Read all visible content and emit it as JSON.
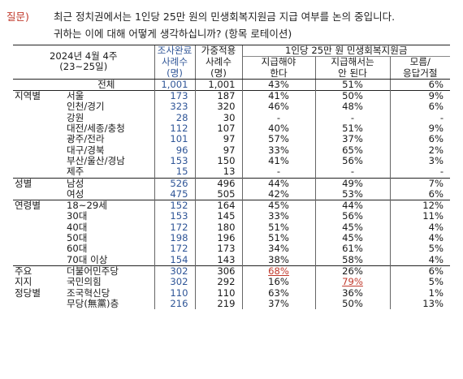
{
  "question": {
    "label": "질문)",
    "line1": "최근 정치권에서는 1인당 25만 원의 민생회복지원금 지급 여부를 논의 중입니다.",
    "line2": "귀하는 이에 대해 어떻게 생각하십니까? (항목 로테이션)"
  },
  "header": {
    "date": "2024년 4월 4주",
    "range": "(23~25일)",
    "col_completed_1": "조사완료",
    "col_completed_2": "사례수",
    "col_completed_3": "(명)",
    "col_weighted_1": "가중적용",
    "col_weighted_2": "사례수",
    "col_weighted_3": "(명)",
    "group_title": "1인당 25만 원 민생회복지원금",
    "opt1_1": "지급해야",
    "opt1_2": "한다",
    "opt2_1": "지급해서는",
    "opt2_2": "안 된다",
    "opt3_1": "모름/",
    "opt3_2": "응답거절"
  },
  "rows": [
    {
      "g1": "",
      "g2": "전체",
      "n": "1,001",
      "w": "1,001",
      "a": "43%",
      "b": "51%",
      "c": "6%"
    },
    {
      "g1": "지역별",
      "g2": "서울",
      "n": "173",
      "w": "187",
      "a": "41%",
      "b": "50%",
      "c": "9%"
    },
    {
      "g1": "",
      "g2": "인천/경기",
      "n": "323",
      "w": "320",
      "a": "46%",
      "b": "48%",
      "c": "6%"
    },
    {
      "g1": "",
      "g2": "강원",
      "n": "28",
      "w": "30",
      "a": "-",
      "b": "-",
      "c": "-"
    },
    {
      "g1": "",
      "g2": "대전/세종/충청",
      "n": "112",
      "w": "107",
      "a": "40%",
      "b": "51%",
      "c": "9%"
    },
    {
      "g1": "",
      "g2": "광주/전라",
      "n": "101",
      "w": "97",
      "a": "57%",
      "b": "37%",
      "c": "6%"
    },
    {
      "g1": "",
      "g2": "대구/경북",
      "n": "96",
      "w": "97",
      "a": "33%",
      "b": "65%",
      "c": "2%"
    },
    {
      "g1": "",
      "g2": "부산/울산/경남",
      "n": "153",
      "w": "150",
      "a": "41%",
      "b": "56%",
      "c": "3%"
    },
    {
      "g1": "",
      "g2": "제주",
      "n": "15",
      "w": "13",
      "a": "-",
      "b": "-",
      "c": "-"
    },
    {
      "g1": "성별",
      "g2": "남성",
      "n": "526",
      "w": "496",
      "a": "44%",
      "b": "49%",
      "c": "7%"
    },
    {
      "g1": "",
      "g2": "여성",
      "n": "475",
      "w": "505",
      "a": "42%",
      "b": "53%",
      "c": "6%"
    },
    {
      "g1": "연령별",
      "g2": "18~29세",
      "n": "152",
      "w": "164",
      "a": "45%",
      "b": "44%",
      "c": "12%"
    },
    {
      "g1": "",
      "g2": "30대",
      "n": "153",
      "w": "145",
      "a": "33%",
      "b": "56%",
      "c": "11%"
    },
    {
      "g1": "",
      "g2": "40대",
      "n": "172",
      "w": "180",
      "a": "51%",
      "b": "45%",
      "c": "4%"
    },
    {
      "g1": "",
      "g2": "50대",
      "n": "198",
      "w": "196",
      "a": "51%",
      "b": "45%",
      "c": "4%"
    },
    {
      "g1": "",
      "g2": "60대",
      "n": "172",
      "w": "173",
      "a": "34%",
      "b": "61%",
      "c": "5%"
    },
    {
      "g1": "",
      "g2": "70대 이상",
      "n": "154",
      "w": "143",
      "a": "38%",
      "b": "58%",
      "c": "4%"
    },
    {
      "g1": "주요",
      "g2": "더불어민주당",
      "n": "302",
      "w": "306",
      "a": "68%",
      "b": "26%",
      "c": "6%"
    },
    {
      "g1": "지지",
      "g2": "국민의힘",
      "n": "302",
      "w": "292",
      "a": "16%",
      "b": "79%",
      "c": "5%"
    },
    {
      "g1": "정당별",
      "g2": "조국혁신당",
      "n": "110",
      "w": "110",
      "a": "63%",
      "b": "36%",
      "c": "1%"
    },
    {
      "g1": "",
      "g2": "무당(無黨)층",
      "n": "216",
      "w": "219",
      "a": "37%",
      "b": "50%",
      "c": "13%"
    }
  ]
}
